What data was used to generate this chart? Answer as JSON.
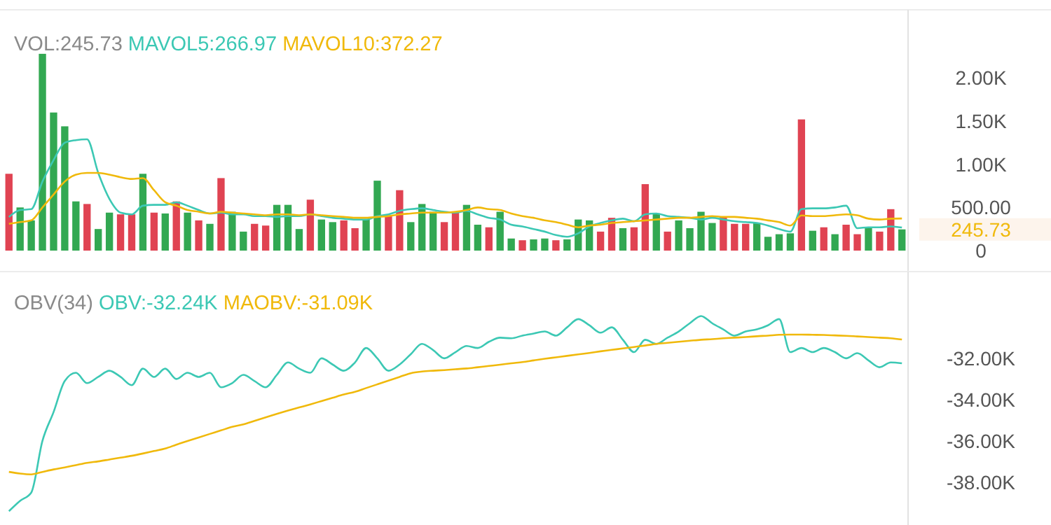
{
  "chart_data": [
    {
      "type": "bar",
      "categories": [
        null,
        null,
        null,
        null,
        null,
        null,
        null,
        null,
        null,
        null,
        null,
        null,
        null,
        null,
        null,
        null,
        null,
        null,
        null,
        null,
        null,
        null,
        null,
        null,
        null,
        null,
        null,
        null,
        null,
        null,
        null,
        null,
        null,
        null,
        null,
        null,
        null,
        null,
        null,
        null,
        null,
        null,
        null,
        null,
        null,
        null,
        null,
        null,
        null,
        null,
        null,
        null,
        null,
        null,
        null,
        null,
        null,
        null,
        null,
        null,
        null,
        null,
        null,
        null,
        null,
        null,
        null,
        null,
        null,
        null,
        null,
        null,
        null,
        null,
        null,
        null,
        null,
        null,
        null,
        null,
        null
      ],
      "series": [
        {
          "name": "VOL:245.73",
          "colors": [
            "#e04352",
            "#32a852",
            "#32a852",
            "#32a852",
            "#32a852",
            "#32a852",
            "#32a852",
            "#e04352",
            "#32a852",
            "#32a852",
            "#e04352",
            "#e04352",
            "#32a852",
            "#e04352",
            "#32a852",
            "#e04352",
            "#32a852",
            "#e04352",
            "#32a852",
            "#e04352",
            "#32a852",
            "#32a852",
            "#e04352",
            "#e04352",
            "#32a852",
            "#32a852",
            "#32a852",
            "#e04352",
            "#32a852",
            "#32a852",
            "#e04352",
            "#e04352",
            "#32a852",
            "#32a852",
            "#e04352",
            "#e04352",
            "#32a852",
            "#32a852",
            "#32a852",
            "#e04352",
            "#e04352",
            "#32a852",
            "#32a852",
            "#e04352",
            "#32a852",
            "#32a852",
            "#e04352",
            "#32a852",
            "#32a852",
            "#e04352",
            "#32a852",
            "#32a852",
            "#32a852",
            "#e04352",
            "#e04352",
            "#32a852",
            "#e04352",
            "#e04352",
            "#32a852",
            "#e04352",
            "#32a852",
            "#32a852",
            "#32a852",
            "#32a852",
            "#e04352",
            "#e04352",
            "#e04352",
            "#32a852",
            "#32a852",
            "#32a852",
            "#32a852",
            "#e04352",
            "#32a852",
            "#e04352",
            "#32a852",
            "#e04352",
            "#e04352",
            "#32a852",
            "#e04352",
            "#e04352",
            "#32a852"
          ],
          "values": [
            890,
            500,
            350,
            2280,
            1600,
            1440,
            570,
            540,
            250,
            440,
            420,
            420,
            890,
            440,
            430,
            570,
            440,
            350,
            310,
            840,
            450,
            220,
            310,
            290,
            530,
            530,
            250,
            590,
            360,
            330,
            350,
            260,
            360,
            810,
            410,
            700,
            330,
            540,
            450,
            330,
            450,
            530,
            300,
            270,
            450,
            140,
            120,
            130,
            140,
            120,
            130,
            360,
            350,
            220,
            380,
            260,
            270,
            770,
            430,
            220,
            350,
            260,
            450,
            320,
            390,
            310,
            310,
            320,
            160,
            190,
            200,
            1520,
            230,
            270,
            190,
            300,
            190,
            270,
            220,
            480,
            245.73
          ]
        },
        {
          "name": "MAVOL5:266.97",
          "type": "line",
          "color": "#3cc8b4",
          "values": [
            390,
            470,
            480,
            800,
            1050,
            1250,
            1280,
            1290,
            900,
            600,
            440,
            420,
            520,
            530,
            530,
            560,
            520,
            470,
            430,
            440,
            420,
            420,
            400,
            400,
            390,
            400,
            400,
            420,
            400,
            380,
            370,
            360,
            360,
            400,
            420,
            460,
            480,
            490,
            470,
            450,
            440,
            460,
            420,
            380,
            360,
            300,
            280,
            250,
            220,
            180,
            160,
            200,
            280,
            320,
            350,
            370,
            340,
            420,
            430,
            400,
            390,
            380,
            360,
            380,
            360,
            340,
            330,
            320,
            290,
            250,
            220,
            480,
            490,
            490,
            500,
            520,
            260,
            270,
            270,
            280,
            266.97
          ]
        },
        {
          "name": "MAVOL10:372.27",
          "type": "line",
          "color": "#f0b90b",
          "values": [
            310,
            330,
            350,
            500,
            650,
            800,
            880,
            900,
            900,
            880,
            850,
            830,
            840,
            700,
            560,
            520,
            470,
            450,
            430,
            450,
            440,
            430,
            420,
            410,
            420,
            420,
            410,
            420,
            410,
            400,
            390,
            380,
            380,
            390,
            400,
            420,
            430,
            440,
            440,
            440,
            450,
            470,
            500,
            480,
            470,
            430,
            400,
            380,
            350,
            330,
            300,
            270,
            290,
            300,
            320,
            330,
            340,
            350,
            360,
            370,
            380,
            380,
            390,
            400,
            390,
            390,
            380,
            370,
            350,
            330,
            290,
            408,
            400,
            400,
            410,
            420,
            410,
            370,
            360,
            370,
            372.27
          ]
        }
      ],
      "ylim": [
        0,
        2790
      ],
      "yticks": [
        {
          "value": 0,
          "label": "0"
        },
        {
          "value": 500,
          "label": "500.00"
        },
        {
          "value": 1000,
          "label": "1.00K"
        },
        {
          "value": 1500,
          "label": "1.50K"
        },
        {
          "value": 2000,
          "label": "2.00K"
        }
      ],
      "annotations": [
        "245.73"
      ],
      "legend": "top left",
      "tick_labels": "y"
    },
    {
      "type": "line",
      "title": "OBV(34)",
      "categories": [
        null,
        null,
        null,
        null,
        null,
        null,
        null,
        null,
        null,
        null,
        null,
        null,
        null,
        null,
        null,
        null,
        null,
        null,
        null,
        null,
        null,
        null,
        null,
        null,
        null,
        null,
        null,
        null,
        null,
        null,
        null,
        null,
        null,
        null,
        null,
        null,
        null,
        null,
        null,
        null,
        null,
        null,
        null,
        null,
        null,
        null,
        null,
        null,
        null,
        null,
        null,
        null,
        null,
        null,
        null,
        null,
        null,
        null,
        null,
        null,
        null,
        null,
        null,
        null,
        null,
        null,
        null,
        null,
        null,
        null,
        null,
        null,
        null,
        null,
        null,
        null,
        null,
        null,
        null,
        null,
        null
      ],
      "series": [
        {
          "name": "OBV:-32.24K",
          "color": "#3cc8b4",
          "values": [
            -39400,
            -38900,
            -38500,
            -36000,
            -34600,
            -33100,
            -32700,
            -33200,
            -32900,
            -32600,
            -32900,
            -33300,
            -32500,
            -32900,
            -32500,
            -33000,
            -32700,
            -32900,
            -32700,
            -33400,
            -33200,
            -32800,
            -33100,
            -33400,
            -32800,
            -32200,
            -32500,
            -32700,
            -32000,
            -32300,
            -32600,
            -32200,
            -31500,
            -32000,
            -32600,
            -32300,
            -31800,
            -31300,
            -31600,
            -32000,
            -31700,
            -31400,
            -31500,
            -31200,
            -31000,
            -31030,
            -30900,
            -30800,
            -30700,
            -30900,
            -30500,
            -30100,
            -30400,
            -30760,
            -30500,
            -31100,
            -31700,
            -31100,
            -31300,
            -31000,
            -30700,
            -30300,
            -29950,
            -30300,
            -30600,
            -30900,
            -30700,
            -30600,
            -30400,
            -30100,
            -31700,
            -31500,
            -31700,
            -31500,
            -31700,
            -32000,
            -31750,
            -32100,
            -32430,
            -32200,
            -32240
          ]
        },
        {
          "name": "MAOBV:-31.09K",
          "color": "#f0b90b",
          "values": [
            -37500,
            -37580,
            -37620,
            -37500,
            -37380,
            -37280,
            -37170,
            -37060,
            -36990,
            -36900,
            -36810,
            -36720,
            -36610,
            -36490,
            -36370,
            -36180,
            -36000,
            -35830,
            -35660,
            -35490,
            -35320,
            -35200,
            -35030,
            -34860,
            -34690,
            -34530,
            -34380,
            -34230,
            -34070,
            -33910,
            -33750,
            -33620,
            -33440,
            -33260,
            -33080,
            -32900,
            -32720,
            -32640,
            -32600,
            -32570,
            -32530,
            -32490,
            -32430,
            -32370,
            -32310,
            -32240,
            -32180,
            -32100,
            -32020,
            -31950,
            -31880,
            -31810,
            -31740,
            -31660,
            -31590,
            -31520,
            -31450,
            -31380,
            -31300,
            -31250,
            -31200,
            -31150,
            -31100,
            -31070,
            -31030,
            -31000,
            -30970,
            -30930,
            -30900,
            -30860,
            -30850,
            -30850,
            -30860,
            -30870,
            -30890,
            -30910,
            -30940,
            -30970,
            -31000,
            -31030,
            -31090
          ]
        }
      ],
      "ylim": [
        -39800,
        -27800
      ],
      "yticks": [
        {
          "value": -32000,
          "label": "-32.00K"
        },
        {
          "value": -34000,
          "label": "-34.00K"
        },
        {
          "value": -36000,
          "label": "-36.00K"
        },
        {
          "value": -38000,
          "label": "-38.00K"
        }
      ],
      "legend": "top left",
      "tick_labels": "y"
    }
  ]
}
